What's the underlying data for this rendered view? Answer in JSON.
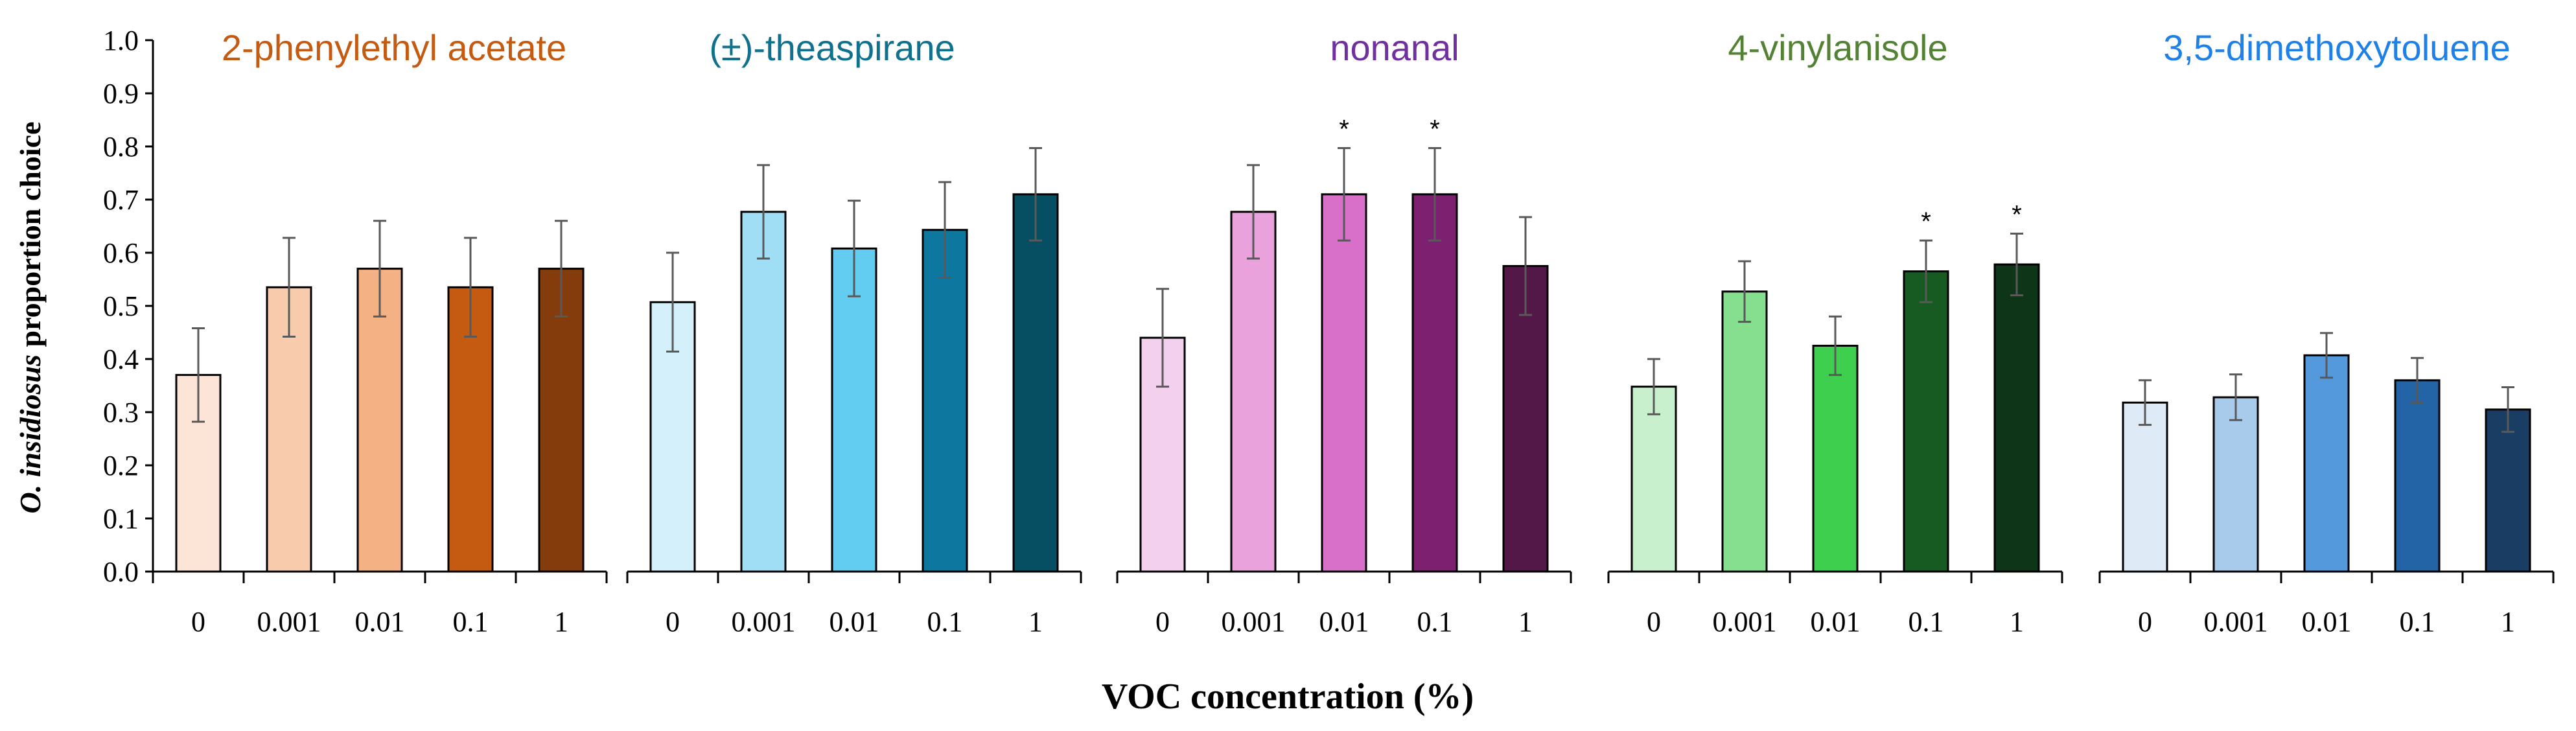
{
  "chart_data": {
    "type": "bar",
    "ylabel_italic": "O. insidiosus",
    "ylabel_rest": " proportion choice",
    "xlabel": "VOC concentration (%)",
    "ylim": [
      0,
      1.0
    ],
    "yticks": [
      "0.0",
      "0.1",
      "0.2",
      "0.3",
      "0.4",
      "0.5",
      "0.6",
      "0.7",
      "0.8",
      "0.9",
      "1.0"
    ],
    "categories": [
      "0",
      "0.001",
      "0.01",
      "0.1",
      "1"
    ],
    "significance_marker": "*",
    "panels": [
      {
        "title": "2-phenylethyl acetate",
        "title_color": "#C55A11",
        "colors": [
          "#FCE4D6",
          "#F8CBAD",
          "#F4B183",
          "#C55A11",
          "#843C0C"
        ],
        "values": [
          0.37,
          0.535,
          0.57,
          0.535,
          0.57
        ],
        "errors": [
          0.088,
          0.093,
          0.09,
          0.093,
          0.09
        ],
        "significant": [
          false,
          false,
          false,
          false,
          false
        ]
      },
      {
        "title": "(±)-theaspirane",
        "title_color": "#10718F",
        "colors": [
          "#D4F1FB",
          "#9FDEF5",
          "#62CDF0",
          "#0E77A0",
          "#064E61"
        ],
        "values": [
          0.507,
          0.677,
          0.608,
          0.643,
          0.71
        ],
        "errors": [
          0.093,
          0.088,
          0.09,
          0.09,
          0.087
        ],
        "significant": [
          false,
          false,
          false,
          false,
          false
        ]
      },
      {
        "title": "nonanal",
        "title_color": "#7030A0",
        "colors": [
          "#F3D0EE",
          "#E9A2DC",
          "#D870CA",
          "#7D2070",
          "#531848"
        ],
        "values": [
          0.44,
          0.677,
          0.71,
          0.71,
          0.575
        ],
        "errors": [
          0.092,
          0.088,
          0.087,
          0.087,
          0.092
        ],
        "significant": [
          false,
          false,
          true,
          true,
          false
        ]
      },
      {
        "title": "4-vinylanisole",
        "title_color": "#548235",
        "colors": [
          "#C8F0CC",
          "#86DF8E",
          "#3ECF4E",
          "#175A22",
          "#0E3517"
        ],
        "values": [
          0.348,
          0.527,
          0.425,
          0.565,
          0.578
        ],
        "errors": [
          0.052,
          0.057,
          0.055,
          0.058,
          0.058
        ],
        "significant": [
          false,
          false,
          false,
          true,
          true
        ]
      },
      {
        "title": "3,5-dimethoxytoluene",
        "title_color": "#1F80E8",
        "colors": [
          "#DEEBF7",
          "#A9CBEB",
          "#5399DB",
          "#2364A6",
          "#1A3E63"
        ],
        "values": [
          0.318,
          0.328,
          0.407,
          0.36,
          0.305
        ],
        "errors": [
          0.042,
          0.043,
          0.042,
          0.042,
          0.042
        ],
        "significant": [
          false,
          false,
          false,
          false,
          false
        ]
      }
    ]
  }
}
